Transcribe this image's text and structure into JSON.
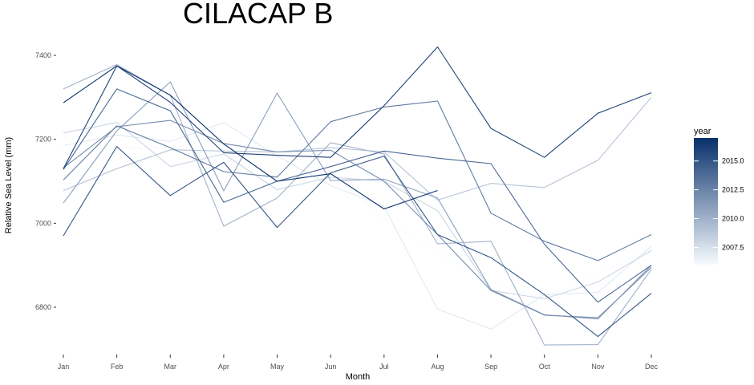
{
  "chart_data": {
    "type": "line",
    "title": "CILACAP B",
    "xlabel": "Month",
    "ylabel": "Relative Sea Level (mm)",
    "categories": [
      "Jan",
      "Feb",
      "Mar",
      "Apr",
      "May",
      "Jun",
      "Jul",
      "Aug",
      "Sep",
      "Oct",
      "Nov",
      "Dec"
    ],
    "ylim": [
      6690,
      7440
    ],
    "yticks": [
      6800,
      7000,
      7200,
      7400
    ],
    "grid": false,
    "legend": {
      "title": "year",
      "position": "right",
      "labels": [
        "2007.5",
        "2010.0",
        "2012.5",
        "2015.0"
      ],
      "ticks": [
        2007.5,
        2010.0,
        2012.5,
        2015.0
      ],
      "range": [
        2006,
        2017
      ],
      "color_low": "#f7fbff",
      "color_high": "#08306b"
    },
    "series": [
      {
        "year": 2006,
        "values": [
          7165,
          7180,
          7180,
          7160,
          7100,
          7120,
          7010,
          6930,
          6860,
          6820,
          6880,
          6940
        ]
      },
      {
        "year": 2007,
        "values": [
          7185,
          7210,
          7195,
          7240,
          7160,
          7090,
          7040,
          6795,
          6748,
          6830,
          6835,
          6945
        ]
      },
      {
        "year": 2008,
        "values": [
          7215,
          7240,
          7135,
          7165,
          7080,
          7110,
          7100,
          7030,
          6840,
          6820,
          6860,
          6935
        ]
      },
      {
        "year": 2009,
        "values": [
          7078,
          7130,
          7175,
          7172,
          7170,
          7180,
          7170,
          7055,
          7095,
          7085,
          7150,
          7300
        ]
      },
      {
        "year": 2010,
        "values": [
          7320,
          7378,
          7305,
          6993,
          7060,
          7192,
          7165,
          6951,
          6957,
          6710,
          6711,
          6890
        ]
      },
      {
        "year": 2011,
        "values": [
          7048,
          7220,
          7337,
          7077,
          7310,
          7102,
          7105,
          7060,
          6842,
          6782,
          6772,
          6900
        ]
      },
      {
        "year": 2012,
        "values": [
          7132,
          7230,
          7245,
          7190,
          7170,
          7174,
          7100,
          6973,
          6840,
          6781,
          6775,
          6895
        ]
      },
      {
        "year": 2013,
        "values": [
          7103,
          7232,
          7180,
          7123,
          7110,
          7242,
          7277,
          7291,
          7024,
          6957,
          6911,
          6973
        ]
      },
      {
        "year": 2014,
        "values": [
          7128,
          7320,
          7268,
          7050,
          7100,
          7135,
          7172,
          7155,
          7142,
          6950,
          6812,
          6900
        ]
      },
      {
        "year": 2015,
        "values": [
          6970,
          7183,
          7066,
          7145,
          6990,
          7120,
          7160,
          6973,
          6918,
          6830,
          6730,
          6833
        ]
      },
      {
        "year": 2016,
        "values": [
          7130,
          7375,
          7288,
          7168,
          7162,
          7157,
          7280,
          7420,
          7226,
          7157,
          7262,
          7311
        ]
      },
      {
        "year": 2017,
        "values": [
          7287,
          7375,
          7305,
          7189,
          7100,
          7118,
          7034,
          7078,
          null,
          null,
          null,
          null
        ]
      }
    ]
  }
}
